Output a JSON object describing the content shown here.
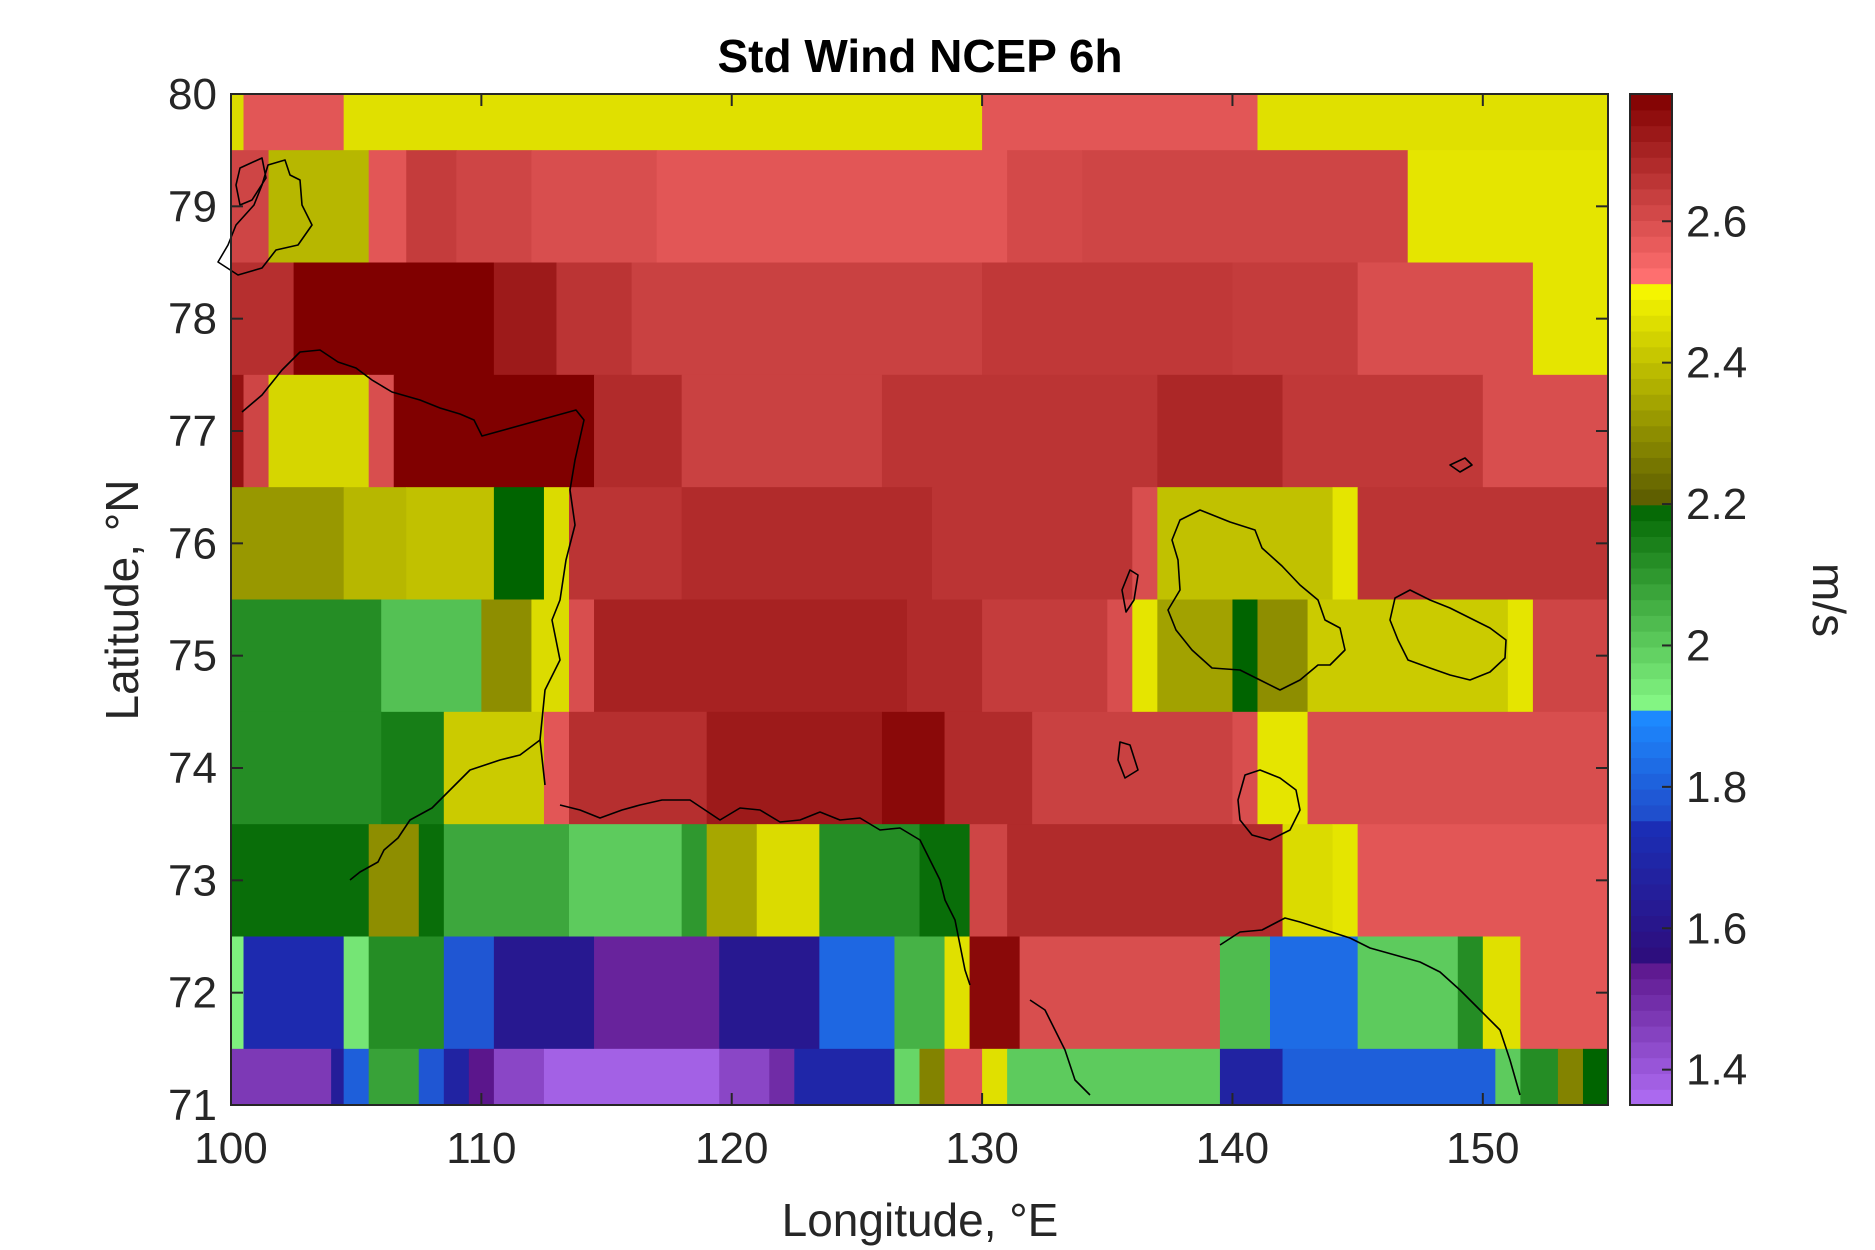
{
  "chart_data": {
    "type": "heatmap",
    "title": "Std Wind NCEP 6h",
    "xlabel": "Longitude, °E",
    "ylabel": "Latitude, °N",
    "colorbar_label": "m/s",
    "xlim": [
      100,
      155
    ],
    "ylim": [
      71,
      80
    ],
    "xticks": [
      "100",
      "110",
      "120",
      "130",
      "140",
      "150"
    ],
    "yticks": [
      "71",
      "72",
      "73",
      "74",
      "75",
      "76",
      "77",
      "78",
      "79",
      "80"
    ],
    "colorbar_ticks": [
      "1.4",
      "1.6",
      "1.8",
      "2",
      "2.2",
      "2.4",
      "2.6"
    ],
    "colorbar_range": [
      1.35,
      2.78
    ],
    "lat_bands": [
      {
        "lat_min": 79.5,
        "lat_max": 80,
        "cells": [
          [
            100,
            100.5,
            2.45
          ],
          [
            100.5,
            104.5,
            2.58
          ],
          [
            104.5,
            130,
            2.46
          ],
          [
            130,
            141,
            2.58
          ],
          [
            141,
            155,
            2.46
          ]
        ]
      },
      {
        "lat_min": 78.5,
        "lat_max": 79.5,
        "cells": [
          [
            100,
            101.5,
            2.62
          ],
          [
            101.5,
            105.5,
            2.38
          ],
          [
            105.5,
            107,
            2.58
          ],
          [
            107,
            109,
            2.64
          ],
          [
            109,
            112,
            2.62
          ],
          [
            112,
            117,
            2.6
          ],
          [
            117,
            131,
            2.58
          ],
          [
            131,
            134,
            2.61
          ],
          [
            134,
            147,
            2.62
          ],
          [
            147,
            155,
            2.47
          ]
        ]
      },
      {
        "lat_min": 77.5,
        "lat_max": 78.5,
        "cells": [
          [
            100,
            102.5,
            2.67
          ],
          [
            102.5,
            110.5,
            2.78
          ],
          [
            110.5,
            113,
            2.72
          ],
          [
            113,
            116,
            2.66
          ],
          [
            116,
            130,
            2.63
          ],
          [
            130,
            140,
            2.65
          ],
          [
            140,
            145,
            2.64
          ],
          [
            145,
            152,
            2.6
          ],
          [
            152,
            155,
            2.47
          ]
        ]
      },
      {
        "lat_min": 76.5,
        "lat_max": 77.5,
        "cells": [
          [
            100,
            100.5,
            2.74
          ],
          [
            100.5,
            101.5,
            2.62
          ],
          [
            101.5,
            105.5,
            2.44
          ],
          [
            105.5,
            106.5,
            2.6
          ],
          [
            106.5,
            114.5,
            2.78
          ],
          [
            114.5,
            118,
            2.68
          ],
          [
            118,
            126,
            2.63
          ],
          [
            126,
            137,
            2.66
          ],
          [
            137,
            142,
            2.69
          ],
          [
            142,
            150,
            2.65
          ],
          [
            150,
            155,
            2.6
          ]
        ]
      },
      {
        "lat_min": 75.5,
        "lat_max": 76.5,
        "cells": [
          [
            100,
            104.5,
            2.32
          ],
          [
            104.5,
            107,
            2.38
          ],
          [
            107,
            110.5,
            2.4
          ],
          [
            110.5,
            112.5,
            2.2
          ],
          [
            112.5,
            113.5,
            2.45
          ],
          [
            113.5,
            118,
            2.66
          ],
          [
            118,
            128,
            2.68
          ],
          [
            128,
            136,
            2.66
          ],
          [
            136,
            137,
            2.6
          ],
          [
            137,
            144,
            2.4
          ],
          [
            144,
            145,
            2.47
          ],
          [
            145,
            155,
            2.66
          ]
        ]
      },
      {
        "lat_min": 74.5,
        "lat_max": 75.5,
        "cells": [
          [
            100,
            106,
            2.12
          ],
          [
            106,
            110,
            2.02
          ],
          [
            110,
            112,
            2.3
          ],
          [
            112,
            113.5,
            2.45
          ],
          [
            113.5,
            114.5,
            2.6
          ],
          [
            114.5,
            127,
            2.7
          ],
          [
            127,
            130,
            2.68
          ],
          [
            130,
            135,
            2.64
          ],
          [
            135,
            136,
            2.6
          ],
          [
            136,
            137,
            2.47
          ],
          [
            137,
            140,
            2.34
          ],
          [
            140,
            141,
            2.2
          ],
          [
            141,
            143,
            2.3
          ],
          [
            143,
            151,
            2.42
          ],
          [
            151,
            152,
            2.47
          ],
          [
            152,
            155,
            2.62
          ]
        ]
      },
      {
        "lat_min": 73.5,
        "lat_max": 74.5,
        "cells": [
          [
            100,
            106,
            2.12
          ],
          [
            106,
            108.5,
            2.15
          ],
          [
            108.5,
            112.5,
            2.42
          ],
          [
            112.5,
            113.5,
            2.58
          ],
          [
            113.5,
            119,
            2.67
          ],
          [
            119,
            126,
            2.72
          ],
          [
            126,
            128.5,
            2.76
          ],
          [
            128.5,
            132,
            2.68
          ],
          [
            132,
            140,
            2.63
          ],
          [
            140,
            141,
            2.6
          ],
          [
            141,
            143,
            2.47
          ],
          [
            143,
            155,
            2.6
          ]
        ]
      },
      {
        "lat_min": 72.5,
        "lat_max": 73.5,
        "cells": [
          [
            100,
            105.5,
            2.18
          ],
          [
            105.5,
            107.5,
            2.3
          ],
          [
            107.5,
            108.5,
            2.18
          ],
          [
            108.5,
            113.5,
            2.07
          ],
          [
            113.5,
            118,
            2.0
          ],
          [
            118,
            119,
            2.1
          ],
          [
            119,
            121,
            2.35
          ],
          [
            121,
            123.5,
            2.45
          ],
          [
            123.5,
            127.5,
            2.12
          ],
          [
            127.5,
            129.5,
            2.18
          ],
          [
            129.5,
            131,
            2.62
          ],
          [
            131,
            142,
            2.68
          ],
          [
            142,
            144,
            2.45
          ],
          [
            144,
            145,
            2.47
          ],
          [
            145,
            155,
            2.58
          ]
        ]
      },
      {
        "lat_min": 71.5,
        "lat_max": 72.5,
        "cells": [
          [
            100,
            100.5,
            1.93
          ],
          [
            100.5,
            104.5,
            1.72
          ],
          [
            104.5,
            105.5,
            1.95
          ],
          [
            105.5,
            108.5,
            2.12
          ],
          [
            108.5,
            110.5,
            1.78
          ],
          [
            110.5,
            114.5,
            1.62
          ],
          [
            114.5,
            119.5,
            1.52
          ],
          [
            119.5,
            123.5,
            1.62
          ],
          [
            123.5,
            126.5,
            1.82
          ],
          [
            126.5,
            128.5,
            2.05
          ],
          [
            128.5,
            129.5,
            2.46
          ],
          [
            129.5,
            131.5,
            2.76
          ],
          [
            131.5,
            139.5,
            2.6
          ],
          [
            139.5,
            141.5,
            2.03
          ],
          [
            141.5,
            145,
            1.83
          ],
          [
            145,
            149,
            2.0
          ],
          [
            149,
            150,
            2.12
          ],
          [
            150,
            151.5,
            2.46
          ],
          [
            151.5,
            155,
            2.58
          ]
        ]
      },
      {
        "lat_min": 71,
        "lat_max": 71.5,
        "cells": [
          [
            100,
            104,
            1.47
          ],
          [
            104,
            104.5,
            1.65
          ],
          [
            104.5,
            105.5,
            1.8
          ],
          [
            105.5,
            107.5,
            2.08
          ],
          [
            107.5,
            108.5,
            1.78
          ],
          [
            108.5,
            109.5,
            1.68
          ],
          [
            109.5,
            110.5,
            1.55
          ],
          [
            110.5,
            112.5,
            1.44
          ],
          [
            112.5,
            119.5,
            1.38
          ],
          [
            119.5,
            121.5,
            1.44
          ],
          [
            121.5,
            122.5,
            1.5
          ],
          [
            122.5,
            126.5,
            1.7
          ],
          [
            126.5,
            127.5,
            1.98
          ],
          [
            127.5,
            128.5,
            2.28
          ],
          [
            128.5,
            130,
            2.58
          ],
          [
            130,
            131,
            2.46
          ],
          [
            131,
            139.5,
            2.0
          ],
          [
            139.5,
            142,
            1.68
          ],
          [
            142,
            150.5,
            1.8
          ],
          [
            150.5,
            151.5,
            2.0
          ],
          [
            151.5,
            153,
            2.12
          ],
          [
            153,
            154,
            2.28
          ],
          [
            154,
            155,
            2.2
          ]
        ]
      }
    ],
    "colormap_bands": [
      {
        "min": 1.35,
        "max": 1.55,
        "from": "#b06ef5",
        "to": "#5b168c"
      },
      {
        "min": 1.55,
        "max": 1.75,
        "from": "#2e0c7a",
        "to": "#1a2fb8"
      },
      {
        "min": 1.75,
        "max": 1.9,
        "from": "#1f49c8",
        "to": "#1d8aff"
      },
      {
        "min": 1.9,
        "max": 2.2,
        "from": "#8cff8c",
        "to": "#006400"
      },
      {
        "min": 2.2,
        "max": 2.52,
        "from": "#5a5a00",
        "to": "#ffff00"
      },
      {
        "min": 2.52,
        "max": 2.78,
        "from": "#ff7070",
        "to": "#800000"
      }
    ],
    "coastline_color": "#000000"
  }
}
